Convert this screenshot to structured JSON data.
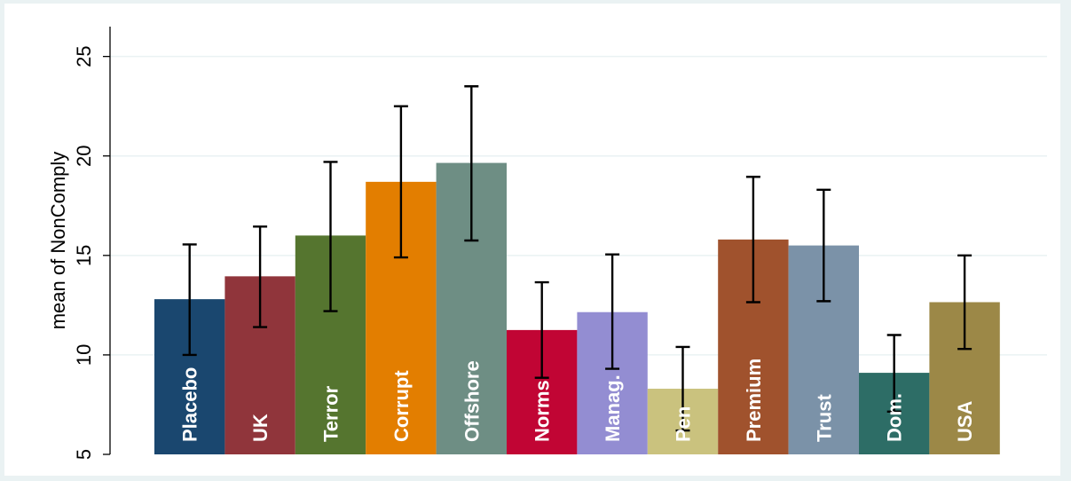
{
  "chart_data": {
    "type": "bar",
    "ylabel": "mean of NonComply",
    "xlabel": "",
    "ylim": [
      5,
      26.5
    ],
    "yticks": [
      5,
      10,
      15,
      20,
      25
    ],
    "grid": true,
    "legend": "none",
    "categories": [
      "Placebo",
      "UK",
      "Terror",
      "Corrupt",
      "Offshore",
      "Norms",
      "Manag.",
      "Pen",
      "Premium",
      "Trust",
      "Dom.",
      "USA"
    ],
    "values": [
      12.8,
      13.95,
      16.0,
      18.7,
      19.65,
      11.25,
      12.15,
      8.3,
      15.8,
      15.5,
      9.1,
      12.65
    ],
    "ci_low": [
      10.0,
      11.4,
      12.2,
      14.9,
      15.75,
      8.85,
      9.3,
      6.2,
      12.65,
      12.7,
      7.15,
      10.3
    ],
    "ci_high": [
      15.55,
      16.45,
      19.7,
      22.5,
      23.5,
      13.65,
      15.05,
      10.4,
      18.95,
      18.3,
      11.0,
      15.0
    ],
    "colors": [
      "#1a476f",
      "#90353b",
      "#55752f",
      "#e37e00",
      "#6e8e84",
      "#c10534",
      "#938dd2",
      "#cac27e",
      "#a0522d",
      "#7b92a8",
      "#2d6d66",
      "#9c8847"
    ]
  }
}
